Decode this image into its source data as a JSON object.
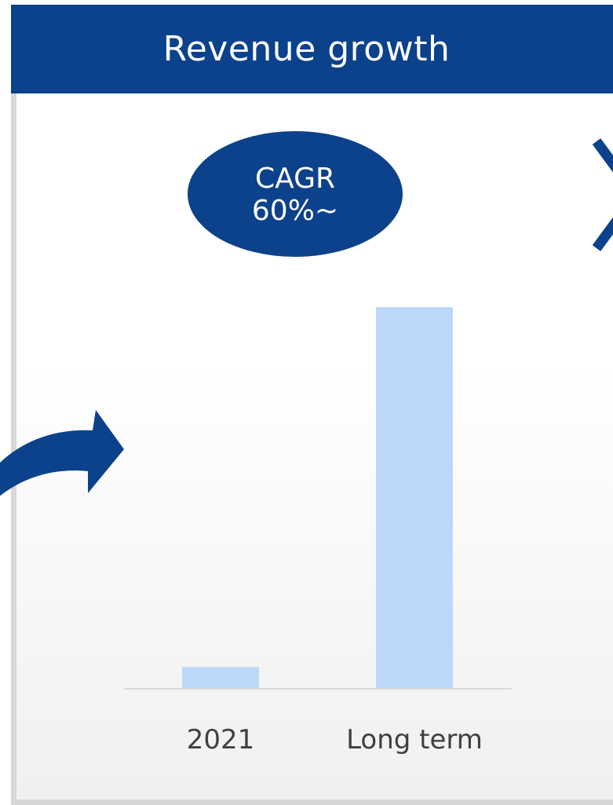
{
  "header": {
    "title": "Revenue growth"
  },
  "callout": {
    "line1": "CAGR",
    "line2": "60%~"
  },
  "colors": {
    "header_bg": "#0b428b",
    "bar": "#bbd8fb",
    "accent": "#0b428b",
    "axis": "#d9d9d9"
  },
  "icons": {
    "left_arrow": "curved-arrow-right-icon",
    "right_chevron": "chevron-right-icon"
  },
  "chart_data": {
    "type": "bar",
    "title": "Revenue growth",
    "categories": [
      "2021",
      "Long term"
    ],
    "values": [
      5.5,
      100
    ],
    "ylim": [
      0,
      100
    ],
    "grid": false,
    "annotations": [
      "CAGR 60%~"
    ]
  }
}
